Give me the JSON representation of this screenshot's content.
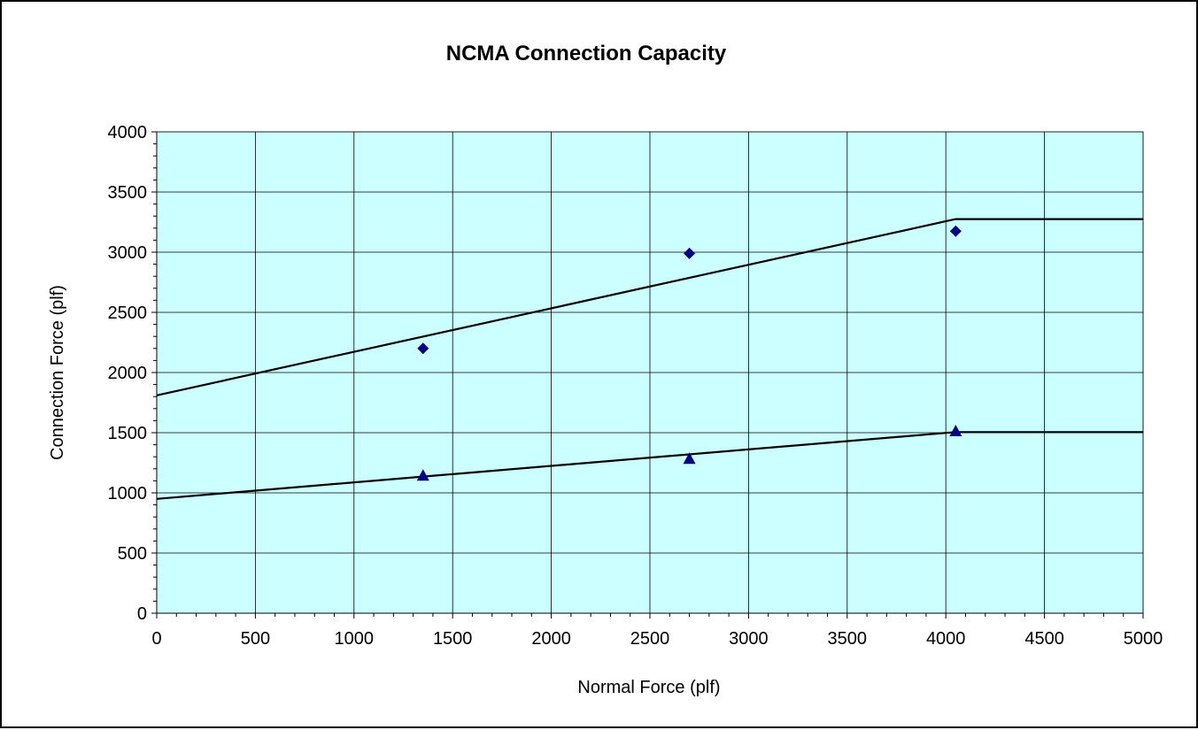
{
  "chart_data": {
    "type": "scatter",
    "title": "NCMA Connection Capacity",
    "xlabel": "Normal Force (plf)",
    "ylabel": "Connection Force (plf)",
    "xlim": [
      0,
      5000
    ],
    "ylim": [
      0,
      4000
    ],
    "x_ticks": [
      0,
      500,
      1000,
      1500,
      2000,
      2500,
      3000,
      3500,
      4000,
      4500,
      5000
    ],
    "y_ticks": [
      0,
      500,
      1000,
      1500,
      2000,
      2500,
      3000,
      3500,
      4000
    ],
    "grid": true,
    "plot_background": "#ccffff",
    "series": [
      {
        "marker": "diamond",
        "color": "#000080",
        "points": [
          [
            1350,
            2200
          ],
          [
            2700,
            2990
          ],
          [
            4050,
            3175
          ]
        ]
      },
      {
        "marker": "triangle",
        "color": "#000080",
        "points": [
          [
            1350,
            1145
          ],
          [
            2700,
            1285
          ],
          [
            4050,
            1515
          ]
        ]
      }
    ],
    "lines": [
      {
        "color": "#000000",
        "points": [
          [
            0,
            1810
          ],
          [
            4050,
            3275
          ],
          [
            5000,
            3275
          ]
        ]
      },
      {
        "color": "#000000",
        "points": [
          [
            0,
            950
          ],
          [
            4050,
            1505
          ],
          [
            5000,
            1505
          ]
        ]
      }
    ]
  }
}
